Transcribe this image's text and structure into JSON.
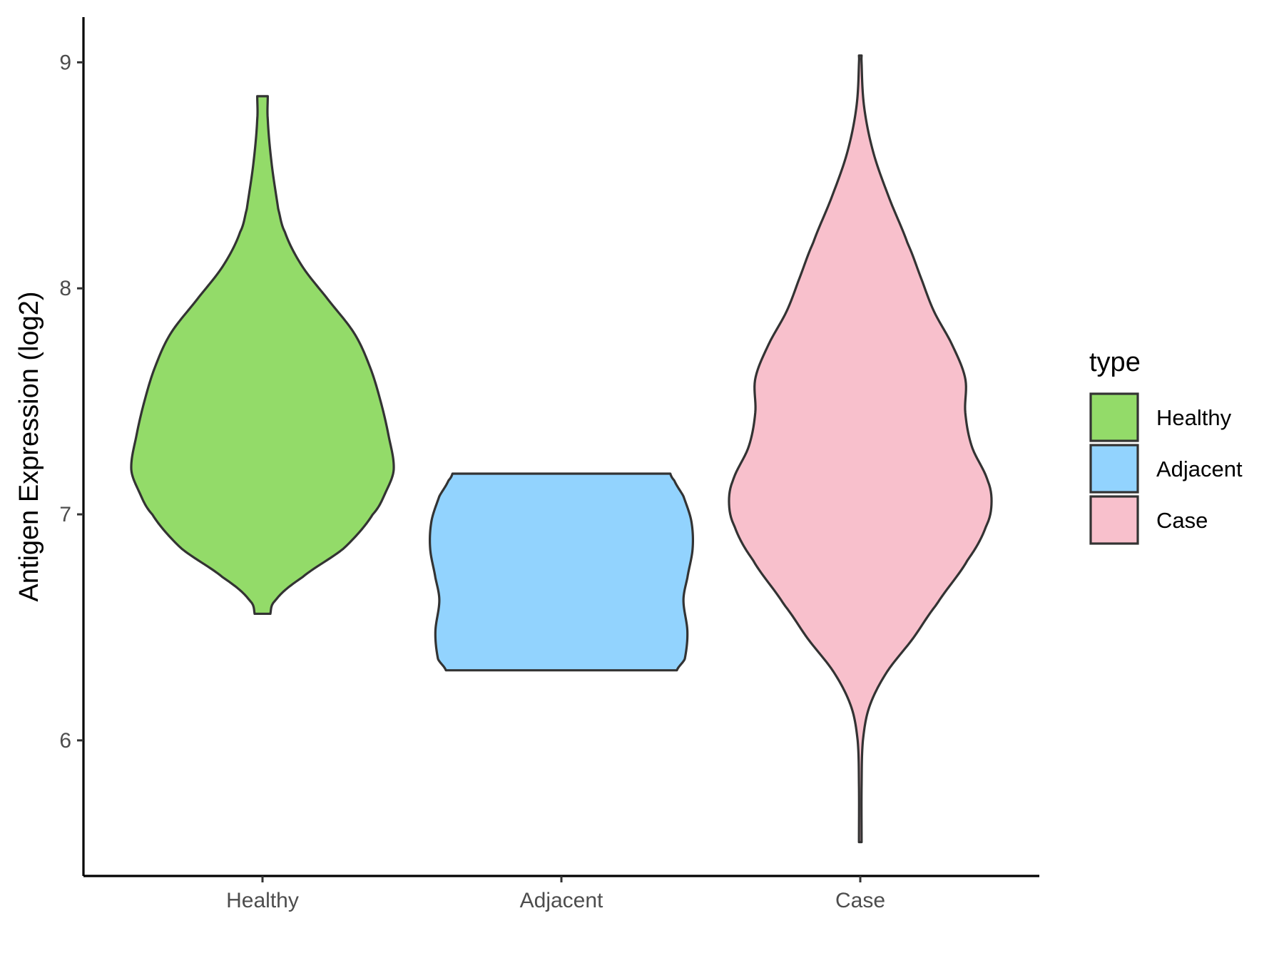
{
  "chart_data": {
    "type": "violin",
    "categories": [
      "Healthy",
      "Adjacent",
      "Case"
    ],
    "ylabel": "Antigen Expression (log2)",
    "xlabel": "",
    "ylim": [
      5.4,
      9.2
    ],
    "yticks": [
      6,
      7,
      8,
      9
    ],
    "grid": false,
    "legend": {
      "title": "type",
      "placement": "right",
      "entries": [
        "Healthy",
        "Adjacent",
        "Case"
      ]
    },
    "series": [
      {
        "name": "Healthy",
        "color": "#93DB69",
        "min": 6.56,
        "max": 8.85,
        "profile": [
          [
            6.56,
            0.06
          ],
          [
            6.62,
            0.1
          ],
          [
            6.72,
            0.3
          ],
          [
            6.85,
            0.62
          ],
          [
            7.0,
            0.84
          ],
          [
            7.1,
            0.94
          ],
          [
            7.2,
            1.0
          ],
          [
            7.35,
            0.96
          ],
          [
            7.5,
            0.9
          ],
          [
            7.65,
            0.82
          ],
          [
            7.8,
            0.7
          ],
          [
            7.95,
            0.5
          ],
          [
            8.1,
            0.3
          ],
          [
            8.25,
            0.17
          ],
          [
            8.35,
            0.12
          ],
          [
            8.55,
            0.07
          ],
          [
            8.75,
            0.04
          ],
          [
            8.85,
            0.04
          ]
        ]
      },
      {
        "name": "Adjacent",
        "color": "#92D3FE",
        "min": 6.31,
        "max": 7.18,
        "profile": [
          [
            6.31,
            0.88
          ],
          [
            6.36,
            0.94
          ],
          [
            6.48,
            0.96
          ],
          [
            6.62,
            0.93
          ],
          [
            6.72,
            0.96
          ],
          [
            6.85,
            1.0
          ],
          [
            6.97,
            0.99
          ],
          [
            7.08,
            0.93
          ],
          [
            7.15,
            0.86
          ],
          [
            7.18,
            0.83
          ]
        ]
      },
      {
        "name": "Case",
        "color": "#F8C0CC",
        "min": 5.55,
        "max": 9.03,
        "profile": [
          [
            5.55,
            0.01
          ],
          [
            5.8,
            0.01
          ],
          [
            6.0,
            0.02
          ],
          [
            6.15,
            0.07
          ],
          [
            6.3,
            0.2
          ],
          [
            6.45,
            0.4
          ],
          [
            6.6,
            0.58
          ],
          [
            6.8,
            0.82
          ],
          [
            6.95,
            0.96
          ],
          [
            7.05,
            1.0
          ],
          [
            7.15,
            0.97
          ],
          [
            7.3,
            0.85
          ],
          [
            7.45,
            0.8
          ],
          [
            7.6,
            0.8
          ],
          [
            7.75,
            0.7
          ],
          [
            7.9,
            0.56
          ],
          [
            8.05,
            0.46
          ],
          [
            8.2,
            0.36
          ],
          [
            8.4,
            0.22
          ],
          [
            8.6,
            0.1
          ],
          [
            8.8,
            0.03
          ],
          [
            9.0,
            0.01
          ],
          [
            9.03,
            0.01
          ]
        ]
      }
    ]
  }
}
